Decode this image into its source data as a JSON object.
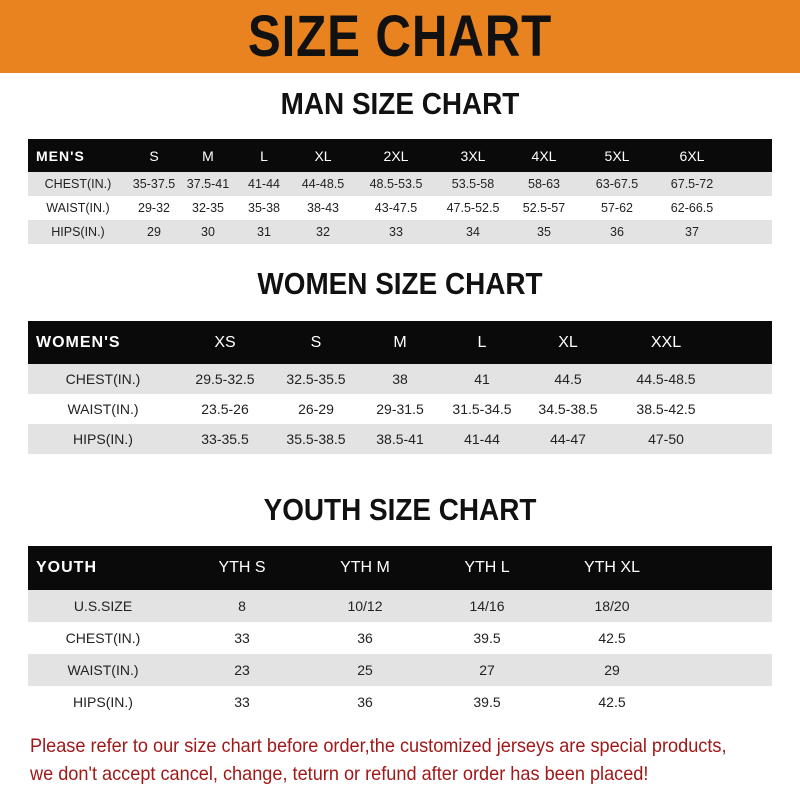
{
  "banner_title": "SIZE CHART",
  "sections": {
    "men": {
      "title": "MAN SIZE CHART",
      "header": [
        "MEN'S",
        "S",
        "M",
        "L",
        "XL",
        "2XL",
        "3XL",
        "4XL",
        "5XL",
        "6XL"
      ],
      "rows": [
        [
          "CHEST(IN.)",
          "35-37.5",
          "37.5-41",
          "41-44",
          "44-48.5",
          "48.5-53.5",
          "53.5-58",
          "58-63",
          "63-67.5",
          "67.5-72"
        ],
        [
          "WAIST(IN.)",
          "29-32",
          "32-35",
          "35-38",
          "38-43",
          "43-47.5",
          "47.5-52.5",
          "52.5-57",
          "57-62",
          "62-66.5"
        ],
        [
          "HIPS(IN.)",
          "29",
          "30",
          "31",
          "32",
          "33",
          "34",
          "35",
          "36",
          "37"
        ]
      ]
    },
    "women": {
      "title": "WOMEN SIZE CHART",
      "header": [
        "WOMEN'S",
        "XS",
        "S",
        "M",
        "L",
        "XL",
        "XXL"
      ],
      "rows": [
        [
          "CHEST(IN.)",
          "29.5-32.5",
          "32.5-35.5",
          "38",
          "41",
          "44.5",
          "44.5-48.5"
        ],
        [
          "WAIST(IN.)",
          "23.5-26",
          "26-29",
          "29-31.5",
          "31.5-34.5",
          "34.5-38.5",
          "38.5-42.5"
        ],
        [
          "HIPS(IN.)",
          "33-35.5",
          "35.5-38.5",
          "38.5-41",
          "41-44",
          "44-47",
          "47-50"
        ]
      ]
    },
    "youth": {
      "title": "YOUTH SIZE CHART",
      "header": [
        "YOUTH",
        "YTH S",
        "YTH M",
        "YTH L",
        "YTH XL"
      ],
      "rows": [
        [
          "U.S.SIZE",
          "8",
          "10/12",
          "14/16",
          "18/20"
        ],
        [
          "CHEST(IN.)",
          "33",
          "36",
          "39.5",
          "42.5"
        ],
        [
          "WAIST(IN.)",
          "23",
          "25",
          "27",
          "29"
        ],
        [
          "HIPS(IN.)",
          "33",
          "36",
          "39.5",
          "42.5"
        ]
      ]
    }
  },
  "notice": "Please refer to our size chart before order,the customized jerseys are special products, we don't accept cancel, change, teturn or refund after order has been placed!",
  "colors": {
    "banner": "#e8831f",
    "header_row": "#0a0a0a",
    "stripe": "#e3e3e3",
    "notice": "#a01818"
  }
}
